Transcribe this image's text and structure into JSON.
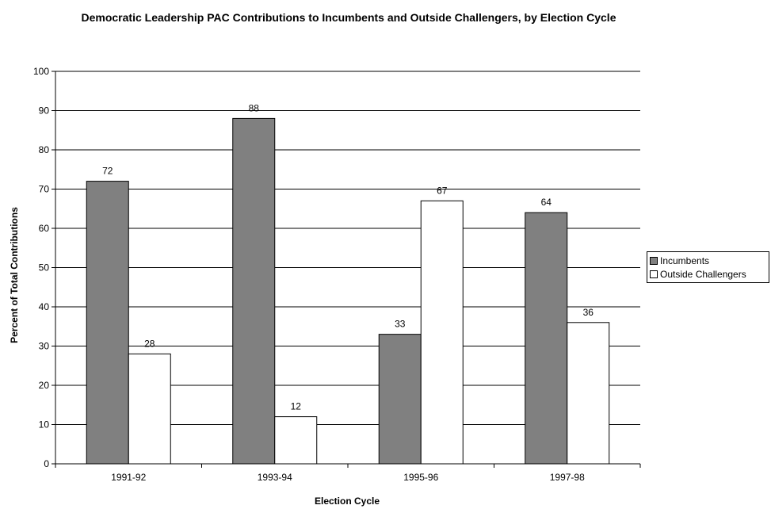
{
  "chart_data": {
    "type": "bar",
    "title": "Democratic Leadership PAC Contributions to Incumbents and Outside Challengers, by Election Cycle",
    "xlabel": "Election Cycle",
    "ylabel": "Percent of Total Contributions",
    "categories": [
      "1991-92",
      "1993-94",
      "1995-96",
      "1997-98"
    ],
    "series": [
      {
        "name": "Incumbents",
        "values": [
          72,
          88,
          33,
          64
        ],
        "color": "#808080"
      },
      {
        "name": "Outside Challengers",
        "values": [
          28,
          12,
          67,
          36
        ],
        "color": "#ffffff"
      }
    ],
    "ylim": [
      0,
      100
    ],
    "yticks": [
      0,
      10,
      20,
      30,
      40,
      50,
      60,
      70,
      80,
      90,
      100
    ],
    "grid": true,
    "legend_position": "right",
    "data_labels": true
  }
}
